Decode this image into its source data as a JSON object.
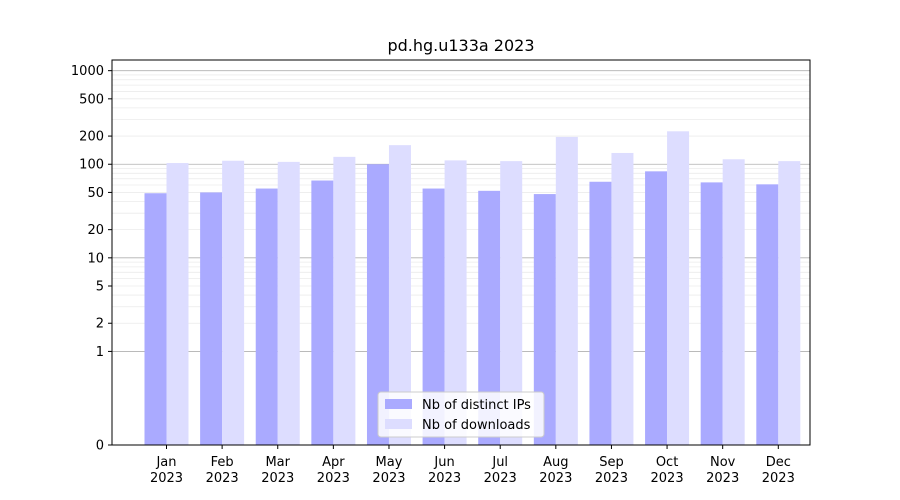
{
  "chart_data": {
    "type": "bar",
    "title": "pd.hg.u133a 2023",
    "scale": "symlog",
    "categories": [
      [
        "Jan",
        "2023"
      ],
      [
        "Feb",
        "2023"
      ],
      [
        "Mar",
        "2023"
      ],
      [
        "Apr",
        "2023"
      ],
      [
        "May",
        "2023"
      ],
      [
        "Jun",
        "2023"
      ],
      [
        "Jul",
        "2023"
      ],
      [
        "Aug",
        "2023"
      ],
      [
        "Sep",
        "2023"
      ],
      [
        "Oct",
        "2023"
      ],
      [
        "Nov",
        "2023"
      ],
      [
        "Dec",
        "2023"
      ]
    ],
    "series": [
      {
        "name": "Nb of distinct IPs",
        "color": "#aaaaff",
        "values": [
          49,
          50,
          55,
          67,
          100,
          55,
          52,
          48,
          65,
          84,
          64,
          61
        ]
      },
      {
        "name": "Nb of downloads",
        "color": "#ddddff",
        "values": [
          103,
          109,
          106,
          120,
          160,
          110,
          108,
          196,
          132,
          225,
          113,
          108
        ]
      }
    ],
    "y_ticks": [
      0,
      1,
      2,
      5,
      10,
      20,
      50,
      100,
      200,
      500,
      1000
    ],
    "y_tick_labels": [
      "0",
      "1",
      "2",
      "5",
      "10",
      "20",
      "50",
      "100",
      "200",
      "500",
      "1000"
    ],
    "ylim": [
      0,
      1300
    ],
    "grid": true,
    "legend_position": "bottom-center"
  }
}
